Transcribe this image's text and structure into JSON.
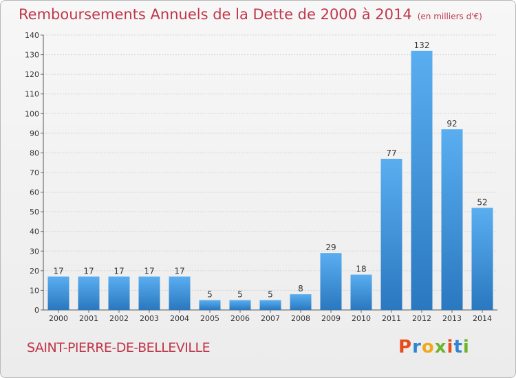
{
  "title": "Remboursements Annuels de la Dette de 2000 à 2014",
  "subtitle": "(en milliers d'€)",
  "commune": "SAINT-PIERRE-DE-BELLEVILLE",
  "logo": {
    "text": "Proxiti",
    "letters": [
      "P",
      "r",
      "o",
      "x",
      "i",
      "t",
      "i"
    ]
  },
  "colors": {
    "bar_top": "#5aaef0",
    "bar_bottom": "#2a78c0",
    "title": "#c0374a"
  },
  "chart_data": {
    "type": "bar",
    "categories": [
      "2000",
      "2001",
      "2002",
      "2003",
      "2004",
      "2005",
      "2006",
      "2007",
      "2008",
      "2009",
      "2010",
      "2011",
      "2012",
      "2013",
      "2014"
    ],
    "values": [
      17,
      17,
      17,
      17,
      17,
      5,
      5,
      5,
      8,
      29,
      18,
      77,
      132,
      92,
      52
    ],
    "ylim": [
      0,
      140
    ],
    "yticks": [
      0,
      10,
      20,
      30,
      40,
      50,
      60,
      70,
      80,
      90,
      100,
      110,
      120,
      130,
      140
    ],
    "grid": true,
    "xlabel": "",
    "ylabel": ""
  }
}
